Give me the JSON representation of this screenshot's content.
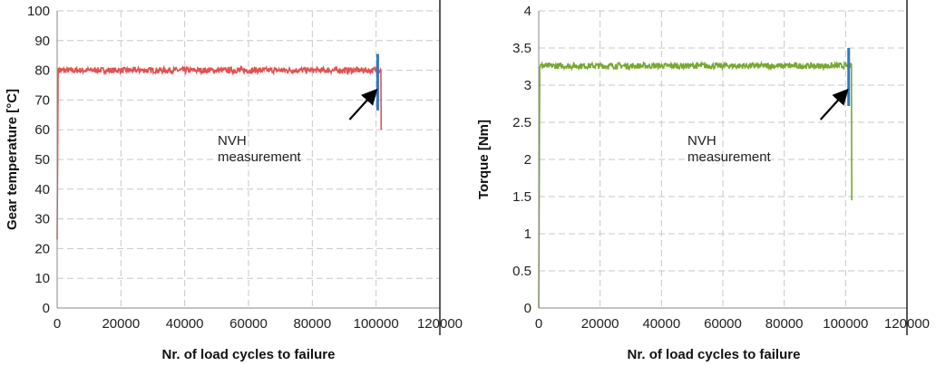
{
  "chart_data": [
    {
      "type": "line",
      "xlabel": "Nr. of load cycles to failure",
      "ylabel": "Gear temperature [°C]",
      "xlim": [
        0,
        120000
      ],
      "ylim": [
        0,
        100
      ],
      "xticks": [
        "0",
        "20000",
        "40000",
        "60000",
        "80000",
        "100000",
        "120000"
      ],
      "yticks": [
        "0",
        "10",
        "20",
        "30",
        "40",
        "50",
        "60",
        "70",
        "80",
        "90",
        "100"
      ],
      "grid": true,
      "annotation": {
        "line1": "NVH",
        "line2": "measurement",
        "points_to_x": 100500
      },
      "series": [
        {
          "color": "#e05252",
          "x": [
            0,
            300,
            101500,
            101600
          ],
          "y": [
            23,
            80,
            80,
            60
          ],
          "noise": 1
        },
        {
          "color": "#2b7bc8",
          "x": [
            100500,
            100500
          ],
          "y": [
            66.5,
            85.5
          ]
        }
      ]
    },
    {
      "type": "line",
      "xlabel": "Nr. of load cycles to failure",
      "ylabel": "Torque [Nm]",
      "xlim": [
        0,
        120000
      ],
      "ylim": [
        0,
        4
      ],
      "xticks": [
        "0",
        "20000",
        "40000",
        "60000",
        "80000",
        "100000",
        "120000"
      ],
      "yticks": [
        "0",
        "0.5",
        "1",
        "1.5",
        "2",
        "2.5",
        "3",
        "3.5",
        "4"
      ],
      "grid": true,
      "annotation": {
        "line1": "NVH",
        "line2": "measurement",
        "points_to_x": 101000
      },
      "series": [
        {
          "color": "#77a832",
          "x": [
            0,
            300,
            101900,
            102000
          ],
          "y": [
            0,
            3.26,
            3.26,
            1.45
          ],
          "noise": 0.04
        },
        {
          "color": "#2b7bc8",
          "x": [
            101000,
            101000
          ],
          "y": [
            2.72,
            3.5
          ]
        }
      ]
    }
  ]
}
